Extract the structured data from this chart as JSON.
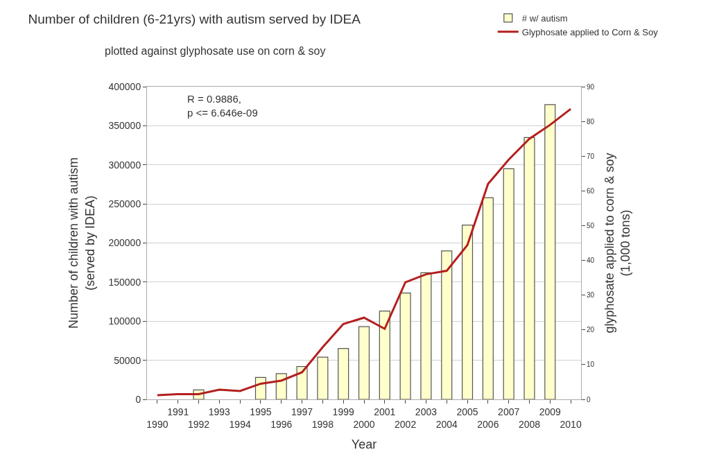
{
  "chart_data": {
    "type": "bar",
    "title": "Number of children (6-21yrs) with autism served by IDEA",
    "subtitle": "plotted against glyphosate use on corn & soy",
    "xlabel": "Year",
    "ylabel": "Number of children with autism\n(served by IDEA)",
    "y2label": "glyphosate applied to corn & soy\n(1,000 tons)",
    "categories": [
      "1990",
      "1991",
      "1992",
      "1993",
      "1994",
      "1995",
      "1996",
      "1997",
      "1998",
      "1999",
      "2000",
      "2001",
      "2002",
      "2003",
      "2004",
      "2005",
      "2006",
      "2007",
      "2008",
      "2009",
      "2010"
    ],
    "series": [
      {
        "name": "# w/ autism",
        "color": "#ffffcc",
        "values": [
          null,
          null,
          12000,
          null,
          null,
          28000,
          33000,
          42000,
          54000,
          65000,
          93000,
          113000,
          136000,
          162000,
          190000,
          223000,
          258000,
          295000,
          335000,
          377000,
          null
        ]
      },
      {
        "name": "Glyphosate applied to Corn & Soy",
        "type": "line",
        "axis": "y2",
        "color": "#b41e1e",
        "values": [
          1.2,
          1.5,
          1.5,
          2.8,
          2.4,
          4.5,
          5.4,
          7.8,
          15,
          21.7,
          23.5,
          20.3,
          33.7,
          36,
          37,
          44.4,
          62,
          69,
          75,
          79,
          83.6
        ]
      }
    ],
    "ylim": [
      0,
      400000
    ],
    "yticks": [
      0,
      50000,
      100000,
      150000,
      200000,
      250000,
      300000,
      350000,
      400000
    ],
    "y2lim": [
      0,
      90
    ],
    "y2ticks": [
      0,
      10,
      20,
      30,
      40,
      50,
      60,
      70,
      80,
      90
    ],
    "grid": "y",
    "legend": "top right",
    "annotations": [
      "R = 0.9886,\np <= 6.646e-09"
    ]
  }
}
